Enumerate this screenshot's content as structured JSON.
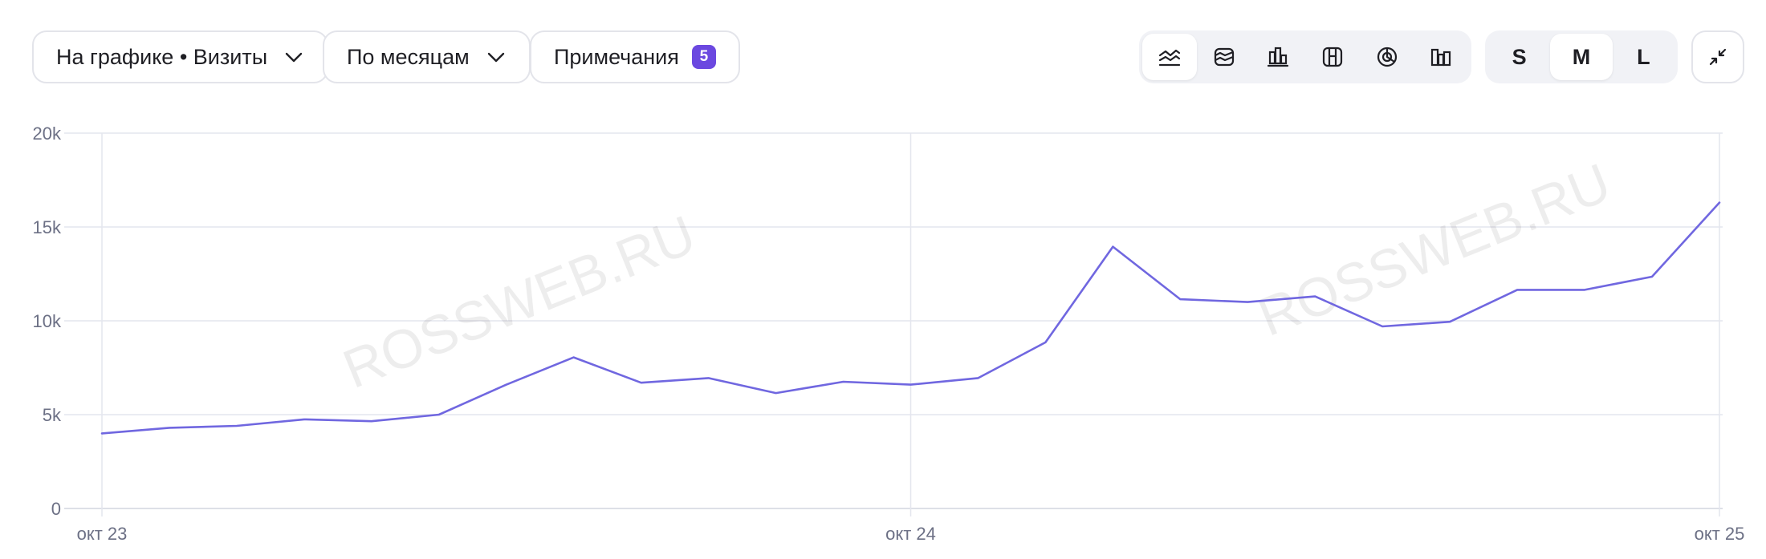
{
  "toolbar": {
    "metric_selector_label": "На графике • Визиты",
    "grouping_selector_label": "По месяцам",
    "notes_label": "Примечания",
    "notes_count": "5",
    "chart_types": [
      "line-chart-icon",
      "area-chart-icon",
      "bar-chart-icon",
      "table-chart-icon",
      "pie-chart-icon",
      "column-chart-icon"
    ],
    "active_chart_type": "line-chart-icon",
    "sizes": [
      "S",
      "M",
      "L"
    ],
    "active_size": "M"
  },
  "watermark": "ROSSWEB.RU",
  "colors": {
    "line": "#7067e0",
    "grid": "#e4e6ee",
    "tick_text": "#6c7085",
    "badge": "#6b48e0"
  },
  "chart_data": {
    "type": "line",
    "x_tick_labels": [
      "окт 23",
      "окт 24",
      "окт 25"
    ],
    "y_tick_labels": [
      "0",
      "5k",
      "10k",
      "15k",
      "20k"
    ],
    "ylim": [
      0,
      20000
    ],
    "y_ticks": [
      0,
      5000,
      10000,
      15000,
      20000
    ],
    "x": [
      "2023-10",
      "2023-11",
      "2023-12",
      "2024-01",
      "2024-02",
      "2024-03",
      "2024-04",
      "2024-05",
      "2024-06",
      "2024-07",
      "2024-08",
      "2024-09",
      "2024-10",
      "2024-11",
      "2024-12",
      "2025-01",
      "2025-02",
      "2025-03",
      "2025-04",
      "2025-05",
      "2025-06",
      "2025-07",
      "2025-08",
      "2025-09",
      "2025-10"
    ],
    "series": [
      {
        "values": [
          4000,
          4300,
          4400,
          4750,
          4650,
          5000,
          6600,
          8050,
          6700,
          6950,
          6150,
          6750,
          6600,
          6950,
          8850,
          13950,
          11150,
          11000,
          11300,
          9700,
          9950,
          11650,
          11650,
          12350,
          16300
        ]
      }
    ],
    "grid": true,
    "legend": "none"
  }
}
